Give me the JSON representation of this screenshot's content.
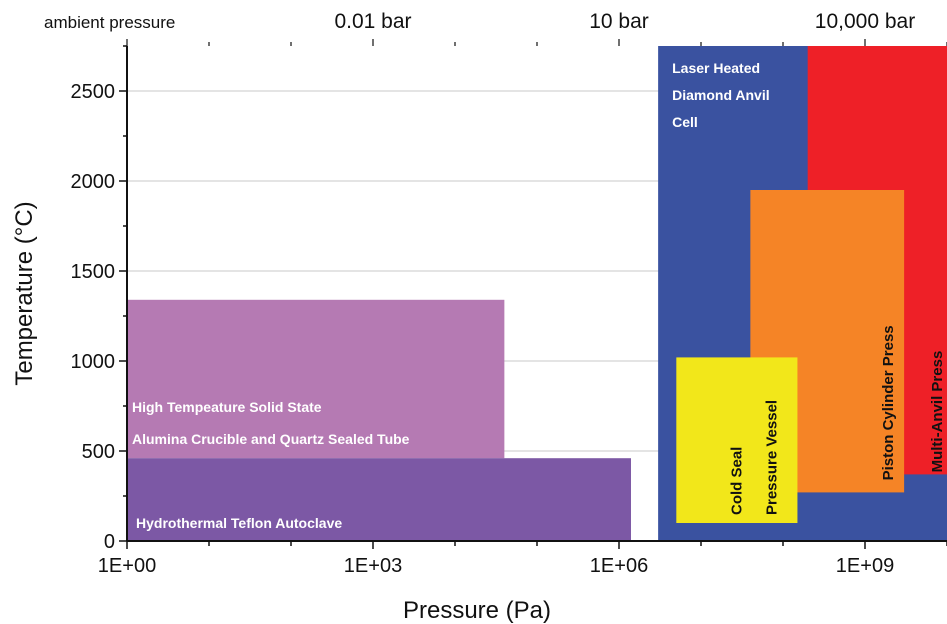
{
  "chart_data": {
    "type": "range-area",
    "x_scale": "log10",
    "xlim": [
      1,
      10000000000
    ],
    "ylim": [
      0,
      2750
    ],
    "xlabel": "Pressure (Pa)",
    "ylabel": "Temperature (°C)",
    "x_tick_values": [
      1,
      1000,
      1000000,
      1000000000
    ],
    "x_tick_labels": [
      "1E+00",
      "1E+03",
      "1E+06",
      "1E+09"
    ],
    "y_tick_values": [
      0,
      500,
      1000,
      1500,
      2000,
      2500
    ],
    "y_tick_labels": [
      "0",
      "500",
      "1000",
      "1500",
      "2000",
      "2500"
    ],
    "top_axis_labels": [
      {
        "text": "ambient pressure",
        "x_value": 1
      },
      {
        "text": "0.01 bar",
        "x_value": 1000
      },
      {
        "text": "10 bar",
        "x_value": 1000000
      },
      {
        "text": "10,000 bar",
        "x_value": 1000000000
      }
    ],
    "grid": "horizontal",
    "regions": [
      {
        "name": "Laser Heated Diamond Anvil Cell",
        "label_lines": [
          "Laser Heated",
          "Diamond Anvil",
          "Cell"
        ],
        "color": "#3a52a0",
        "x_range": [
          3000000,
          10000000000
        ],
        "y_range": [
          0,
          2750
        ],
        "label_style": "light"
      },
      {
        "name": "Multi-Anvil Press",
        "label_lines": [
          "Multi-Anvil Press"
        ],
        "color": "#ee2027",
        "x_range": [
          200000000,
          10000000000
        ],
        "y_range": [
          370,
          2750
        ],
        "label_style": "dark-vertical"
      },
      {
        "name": "Piston Cylinder Press",
        "label_lines": [
          "Piston Cylinder Press"
        ],
        "color": "#f58426",
        "x_range": [
          40000000,
          3000000000
        ],
        "y_range": [
          270,
          1950
        ],
        "label_style": "dark-vertical"
      },
      {
        "name": "Cold Seal Pressure Vessel",
        "label_lines": [
          "Cold Seal",
          "Pressure Vessel"
        ],
        "color": "#f2e71a",
        "x_range": [
          5000000,
          150000000
        ],
        "y_range": [
          100,
          1020
        ],
        "label_style": "dark-vertical"
      },
      {
        "name": "High Tempeature Solid State Alumina Crucible and Quartz Sealed Tube",
        "label_lines": [
          "High Tempeature Solid State",
          "Alumina Crucible and Quartz Sealed Tube"
        ],
        "color": "#b57ab3",
        "x_range": [
          1,
          40000
        ],
        "y_range": [
          460,
          1340
        ],
        "label_style": "light"
      },
      {
        "name": "Hydrothermal Teflon Autoclave",
        "label_lines": [
          "Hydrothermal Teflon Autoclave"
        ],
        "color": "#7c58a5",
        "x_range": [
          1,
          1400000
        ],
        "y_range": [
          0,
          460
        ],
        "label_style": "light"
      }
    ]
  }
}
